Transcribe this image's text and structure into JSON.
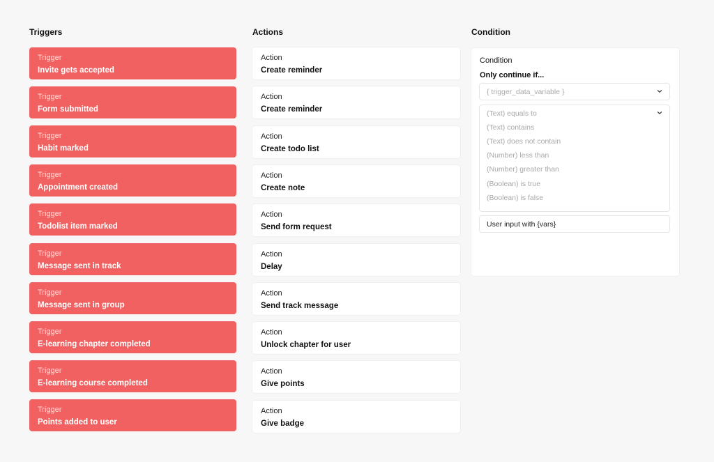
{
  "triggers": {
    "title": "Triggers",
    "kind_label": "Trigger",
    "items": [
      {
        "label": "Invite gets accepted"
      },
      {
        "label": "Form submitted"
      },
      {
        "label": "Habit marked"
      },
      {
        "label": "Appointment created"
      },
      {
        "label": "Todolist item marked"
      },
      {
        "label": "Message sent in track"
      },
      {
        "label": "Message sent in group"
      },
      {
        "label": "E-learning chapter completed"
      },
      {
        "label": "E-learning course completed"
      },
      {
        "label": "Points added to user"
      }
    ]
  },
  "actions": {
    "title": "Actions",
    "kind_label": "Action",
    "items": [
      {
        "label": "Create reminder"
      },
      {
        "label": "Create reminder"
      },
      {
        "label": "Create todo list"
      },
      {
        "label": "Create note"
      },
      {
        "label": "Send form request"
      },
      {
        "label": "Delay"
      },
      {
        "label": "Send track message"
      },
      {
        "label": "Unlock chapter for user"
      },
      {
        "label": "Give points"
      },
      {
        "label": "Give badge"
      }
    ]
  },
  "condition": {
    "title": "Condition",
    "panel_heading": "Condition",
    "subheading": "Only continue if...",
    "variable_select": "{ trigger_data_variable }",
    "operators": [
      "(Text) equals to",
      "(Text) contains",
      "(Text) does not contain",
      "(Number) less than",
      "(Number) greater than",
      "(Boolean) is true",
      "(Boolean) is false"
    ],
    "user_input": "User input with {vars}"
  },
  "colors": {
    "trigger_bg": "#f26161",
    "action_bg": "#ffffff",
    "page_bg": "#f7f7f7",
    "placeholder_text": "#a9a9a9"
  },
  "icons": {
    "select_chevron": "chevron-down-icon"
  }
}
